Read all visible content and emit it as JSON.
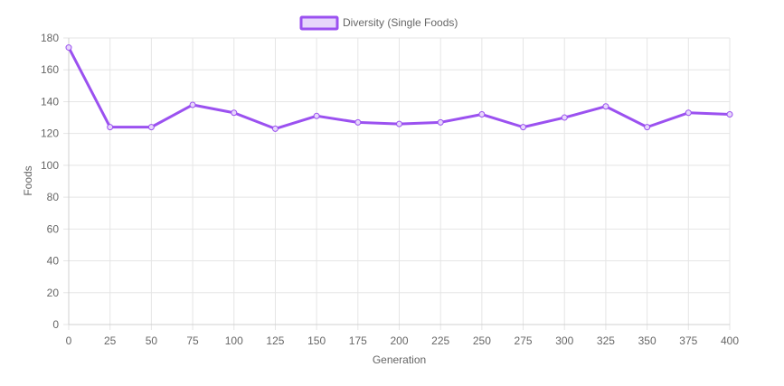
{
  "chart_data": {
    "type": "line",
    "x": [
      0,
      25,
      50,
      75,
      100,
      125,
      150,
      175,
      200,
      225,
      250,
      275,
      300,
      325,
      350,
      375,
      400
    ],
    "series": [
      {
        "name": "Diversity (Single Foods)",
        "values": [
          174,
          124,
          124,
          138,
          133,
          123,
          131,
          127,
          126,
          127,
          132,
          124,
          130,
          137,
          124,
          133,
          132
        ],
        "color": "#9b51f0",
        "fill": "#e6d6fb"
      }
    ],
    "xlabel": "Generation",
    "ylabel": "Foods",
    "xlim": [
      0,
      400
    ],
    "ylim": [
      0,
      180
    ],
    "x_ticks": [
      "0",
      "25",
      "50",
      "75",
      "100",
      "125",
      "150",
      "175",
      "200",
      "225",
      "250",
      "275",
      "300",
      "325",
      "350",
      "375",
      "400"
    ],
    "y_ticks": [
      "0",
      "20",
      "40",
      "60",
      "80",
      "100",
      "120",
      "140",
      "160",
      "180"
    ],
    "grid": true,
    "legend": "top-center"
  }
}
